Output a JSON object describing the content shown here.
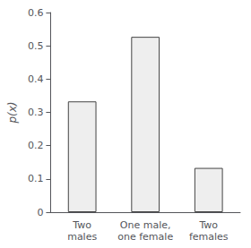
{
  "chart_data": {
    "type": "bar",
    "categories": [
      "Two\nmales",
      "One male,\none female",
      "Two\nfemales"
    ],
    "values": [
      0.333,
      0.527,
      0.133
    ],
    "color": "#eeeeee",
    "ylabel": "p(x)",
    "ylim": [
      0,
      0.6
    ],
    "yticks": [
      0,
      0.1,
      0.2,
      0.3,
      0.4,
      0.5,
      0.6
    ],
    "grid": false
  }
}
